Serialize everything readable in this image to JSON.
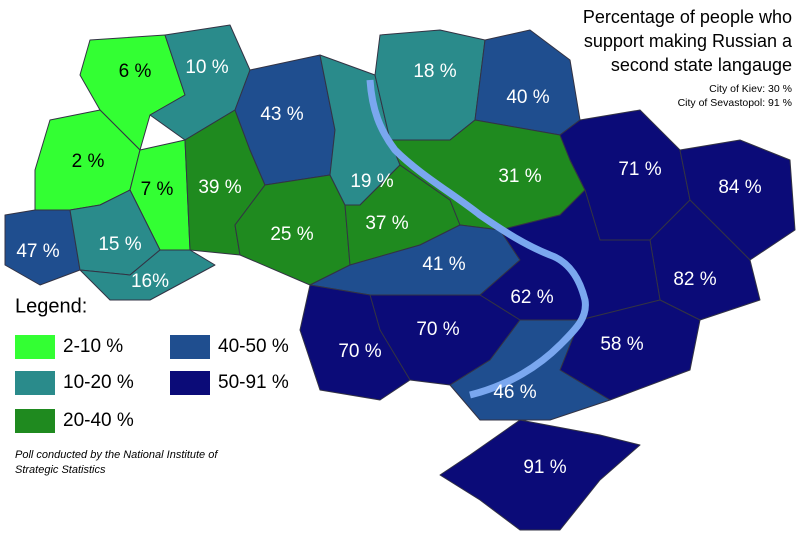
{
  "title_lines": [
    "Percentage of people who",
    "support making Russian a",
    "second state langauge"
  ],
  "notes": [
    "City of Kiev: 30 %",
    "City of Sevastopol: 91 %"
  ],
  "legend": {
    "title": "Legend:",
    "items": [
      {
        "label": "2-10 %",
        "color": "#33ff33"
      },
      {
        "label": "10-20 %",
        "color": "#2a8b8b"
      },
      {
        "label": "20-40 %",
        "color": "#1f8a1f"
      },
      {
        "label": "40-50 %",
        "color": "#1f4e8f"
      },
      {
        "label": "50-91 %",
        "color": "#0b0b78"
      }
    ]
  },
  "source": [
    "Poll conducted by the National Institute of",
    "Strategic Statistics"
  ],
  "regions": [
    {
      "label": "6 %",
      "class": 0
    },
    {
      "label": "2 %",
      "class": 0
    },
    {
      "label": "7 %",
      "class": 0
    },
    {
      "label": "10 %",
      "class": 1
    },
    {
      "label": "47 %",
      "class": 3
    },
    {
      "label": "15 %",
      "class": 1
    },
    {
      "label": "16%",
      "class": 1
    },
    {
      "label": "39 %",
      "class": 2
    },
    {
      "label": "43 %",
      "class": 3
    },
    {
      "label": "25 %",
      "class": 2
    },
    {
      "label": "19 %",
      "class": 1
    },
    {
      "label": "18 %",
      "class": 1
    },
    {
      "label": "40 %",
      "class": 3
    },
    {
      "label": "37 %",
      "class": 2
    },
    {
      "label": "31 %",
      "class": 2
    },
    {
      "label": "41 %",
      "class": 3
    },
    {
      "label": "71 %",
      "class": 4
    },
    {
      "label": "84 %",
      "class": 4
    },
    {
      "label": "82 %",
      "class": 4
    },
    {
      "label": "62 %",
      "class": 4
    },
    {
      "label": "58 %",
      "class": 4
    },
    {
      "label": "70 %",
      "class": 4
    },
    {
      "label": "70 %",
      "class": 4
    },
    {
      "label": "46 %",
      "class": 3
    },
    {
      "label": "91 %",
      "class": 4
    }
  ]
}
